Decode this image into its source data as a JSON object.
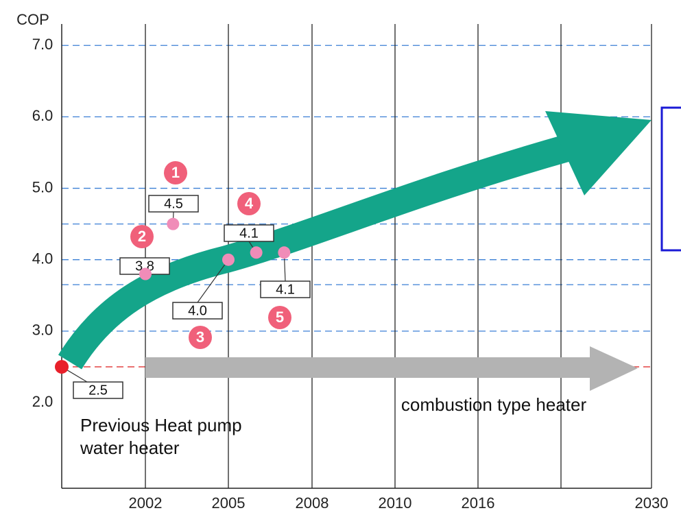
{
  "chart_data": {
    "type": "scatter",
    "y_label": "COP",
    "xlim": [
      1999,
      2030
    ],
    "xticks": [
      2002,
      2005,
      2008,
      2010,
      2016,
      2030
    ],
    "ylim": [
      0.8,
      7.3
    ],
    "yticks": [
      {
        "value": 2,
        "label": "2.0"
      },
      {
        "value": 3,
        "label": "3.0"
      },
      {
        "value": 4,
        "label": "4.0"
      },
      {
        "value": 5,
        "label": "5.0"
      },
      {
        "value": 6,
        "label": "6.0"
      },
      {
        "value": 7,
        "label": "7.0"
      }
    ],
    "grid": true,
    "reference_lines": [
      {
        "value": 4.5,
        "color": "#3a7fd5"
      },
      {
        "value": 3.65,
        "color": "#3a7fd5"
      },
      {
        "value": 2.5,
        "color": "#e03030"
      }
    ],
    "x": [
      1999,
      2003,
      2002,
      2005,
      2006,
      2007
    ],
    "values": [
      2.5,
      4.5,
      3.8,
      4,
      4.1,
      4.1
    ],
    "value_labels": [
      "2.5",
      "4.5",
      "3.8",
      "4.0",
      "4.1",
      "4.1"
    ],
    "markers": [
      null,
      "1",
      "2",
      "3",
      "4",
      "5"
    ],
    "colors": [
      "#e8202a",
      "#f08cb8",
      "#f08cb8",
      "#f08cb8",
      "#f08cb8",
      "#f08cb8"
    ],
    "marker_color": "#f0607a",
    "annotations": [
      "combustion type heater",
      "Previous Heat pump",
      "water heater"
    ]
  }
}
